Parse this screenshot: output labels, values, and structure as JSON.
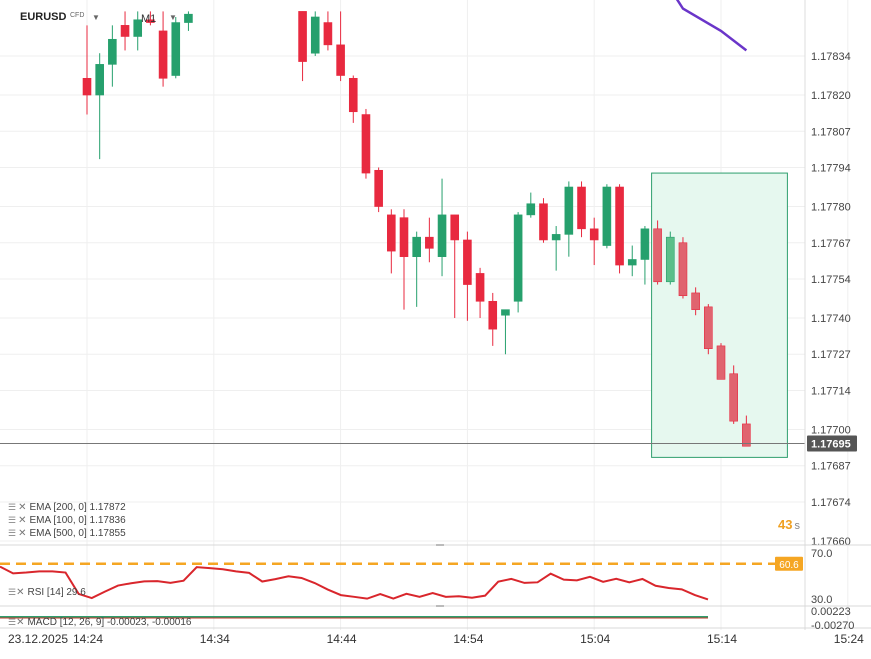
{
  "header": {
    "symbol": "EURUSD",
    "symbol_type": "CFD",
    "timeframe": "M1",
    "countdown_value": "43",
    "countdown_unit": "s"
  },
  "indicators": {
    "ema200": "EMA [200, 0] 1.17872",
    "ema100": "EMA [100, 0] 1.17836",
    "ema500": "EMA [500, 0] 1.17855",
    "rsi": "RSI [14] 29.6",
    "macd": "MACD [12, 26, 9] -0.00023, -0.00016"
  },
  "colors": {
    "up": "#26a06d",
    "down": "#e8293f",
    "down_light": "#e0646f",
    "up_light": "#5cbf8a",
    "ema_line": "#6a35c9",
    "box_fill": "#e6f8ef",
    "box_stroke": "#2e9e6d",
    "rsi_line": "#d9262c",
    "rsi_level": "#f5a623",
    "macd_line": "#2e9e6d",
    "price_tag": "#555555"
  },
  "chart_data": {
    "type": "candlestick",
    "price_axis_labels": [
      "1.17834",
      "1.17820",
      "1.17807",
      "1.17794",
      "1.17780",
      "1.17767",
      "1.17754",
      "1.17740",
      "1.17727",
      "1.17714",
      "1.17700",
      "1.17687",
      "1.17674",
      "1.17660"
    ],
    "current_price": "1.17695",
    "time_axis": {
      "date": "23.12.2025",
      "labels": [
        "14:24",
        "14:34",
        "14:44",
        "14:54",
        "15:04",
        "15:14",
        "15:24"
      ]
    },
    "candles": [
      {
        "time": "14:24",
        "o": 1.17826,
        "h": 1.17845,
        "l": 1.17813,
        "c": 1.1782
      },
      {
        "time": "14:25",
        "o": 1.1782,
        "h": 1.17835,
        "l": 1.17797,
        "c": 1.17831
      },
      {
        "time": "14:26",
        "o": 1.17831,
        "h": 1.17845,
        "l": 1.17823,
        "c": 1.1784
      },
      {
        "time": "14:27",
        "o": 1.17845,
        "h": 1.1785,
        "l": 1.17836,
        "c": 1.17841
      },
      {
        "time": "14:28",
        "o": 1.17841,
        "h": 1.1785,
        "l": 1.17836,
        "c": 1.17847
      },
      {
        "time": "14:29",
        "o": 1.17847,
        "h": 1.1785,
        "l": 1.17845,
        "c": 1.17846
      },
      {
        "time": "14:30",
        "o": 1.17843,
        "h": 1.1785,
        "l": 1.17823,
        "c": 1.17826
      },
      {
        "time": "14:31",
        "o": 1.17827,
        "h": 1.17848,
        "l": 1.17826,
        "c": 1.17846
      },
      {
        "time": "14:32",
        "o": 1.17846,
        "h": 1.1785,
        "l": 1.17843,
        "c": 1.17849
      },
      {
        "time": "14:41",
        "o": 1.1785,
        "h": 1.1785,
        "l": 1.17825,
        "c": 1.17832
      },
      {
        "time": "14:42",
        "o": 1.17835,
        "h": 1.1785,
        "l": 1.17834,
        "c": 1.17848
      },
      {
        "time": "14:43",
        "o": 1.17846,
        "h": 1.1785,
        "l": 1.17836,
        "c": 1.17838
      },
      {
        "time": "14:44",
        "o": 1.17838,
        "h": 1.1785,
        "l": 1.17825,
        "c": 1.17827
      },
      {
        "time": "14:45",
        "o": 1.17826,
        "h": 1.17827,
        "l": 1.1781,
        "c": 1.17814
      },
      {
        "time": "14:46",
        "o": 1.17813,
        "h": 1.17815,
        "l": 1.1779,
        "c": 1.17792
      },
      {
        "time": "14:47",
        "o": 1.17793,
        "h": 1.17794,
        "l": 1.17778,
        "c": 1.1778
      },
      {
        "time": "14:48",
        "o": 1.17777,
        "h": 1.17779,
        "l": 1.17756,
        "c": 1.17764
      },
      {
        "time": "14:49",
        "o": 1.17776,
        "h": 1.17779,
        "l": 1.17743,
        "c": 1.17762
      },
      {
        "time": "14:50",
        "o": 1.17762,
        "h": 1.17771,
        "l": 1.17744,
        "c": 1.17769
      },
      {
        "time": "14:51",
        "o": 1.17769,
        "h": 1.17776,
        "l": 1.1776,
        "c": 1.17765
      },
      {
        "time": "14:52",
        "o": 1.17762,
        "h": 1.1779,
        "l": 1.17755,
        "c": 1.17777
      },
      {
        "time": "14:53",
        "o": 1.17777,
        "h": 1.17777,
        "l": 1.1774,
        "c": 1.17768
      },
      {
        "time": "14:54",
        "o": 1.17768,
        "h": 1.17771,
        "l": 1.17739,
        "c": 1.17752
      },
      {
        "time": "14:55",
        "o": 1.17756,
        "h": 1.17758,
        "l": 1.1774,
        "c": 1.17746
      },
      {
        "time": "14:56",
        "o": 1.17746,
        "h": 1.17749,
        "l": 1.1773,
        "c": 1.17736
      },
      {
        "time": "14:57",
        "o": 1.17741,
        "h": 1.17743,
        "l": 1.17727,
        "c": 1.17743
      },
      {
        "time": "14:58",
        "o": 1.17746,
        "h": 1.17778,
        "l": 1.17742,
        "c": 1.17777
      },
      {
        "time": "14:59",
        "o": 1.17777,
        "h": 1.17785,
        "l": 1.17776,
        "c": 1.17781
      },
      {
        "time": "15:00",
        "o": 1.17781,
        "h": 1.17783,
        "l": 1.17767,
        "c": 1.17768
      },
      {
        "time": "15:01",
        "o": 1.17768,
        "h": 1.17773,
        "l": 1.17757,
        "c": 1.1777
      },
      {
        "time": "15:02",
        "o": 1.1777,
        "h": 1.17789,
        "l": 1.17762,
        "c": 1.17787
      },
      {
        "time": "15:03",
        "o": 1.17787,
        "h": 1.17789,
        "l": 1.17769,
        "c": 1.17772
      },
      {
        "time": "15:04",
        "o": 1.17772,
        "h": 1.17776,
        "l": 1.17759,
        "c": 1.17768
      },
      {
        "time": "15:05",
        "o": 1.17766,
        "h": 1.17788,
        "l": 1.17765,
        "c": 1.17787
      },
      {
        "time": "15:06",
        "o": 1.17787,
        "h": 1.17788,
        "l": 1.17756,
        "c": 1.17759
      },
      {
        "time": "15:07",
        "o": 1.17759,
        "h": 1.17766,
        "l": 1.17755,
        "c": 1.17761
      },
      {
        "time": "15:08",
        "o": 1.17761,
        "h": 1.17773,
        "l": 1.17752,
        "c": 1.17772
      },
      {
        "time": "15:09",
        "o": 1.17772,
        "h": 1.17775,
        "l": 1.17752,
        "c": 1.17753
      },
      {
        "time": "15:10",
        "o": 1.17753,
        "h": 1.17771,
        "l": 1.17752,
        "c": 1.17769
      },
      {
        "time": "15:11",
        "o": 1.17767,
        "h": 1.17769,
        "l": 1.17747,
        "c": 1.17748
      },
      {
        "time": "15:12",
        "o": 1.17749,
        "h": 1.17751,
        "l": 1.17741,
        "c": 1.17743
      },
      {
        "time": "15:13",
        "o": 1.17744,
        "h": 1.17745,
        "l": 1.17727,
        "c": 1.17729
      },
      {
        "time": "15:14",
        "o": 1.1773,
        "h": 1.17731,
        "l": 1.17718,
        "c": 1.17718
      },
      {
        "time": "15:15",
        "o": 1.1772,
        "h": 1.17723,
        "l": 1.17702,
        "c": 1.17703
      },
      {
        "time": "15:16",
        "o": 1.17702,
        "h": 1.17705,
        "l": 1.17694,
        "c": 1.17694
      }
    ],
    "highlight_box": {
      "t_start": "15:09",
      "t_end": "15:19",
      "price_high": 1.17792,
      "price_low": 1.1769
    },
    "ema_visible_segment": [
      {
        "t": "15:11",
        "v": 1.17851
      },
      {
        "t": "15:14",
        "v": 1.17843
      },
      {
        "t": "15:16",
        "v": 1.17836
      }
    ],
    "rsi": {
      "levels": [
        "70.0",
        "30.0"
      ],
      "level_highlight": "60.6",
      "values": [
        58.1,
        52.3,
        53.0,
        54.0,
        54.0,
        53.0,
        34.4,
        30.8,
        36.4,
        41.7,
        43.7,
        45.3,
        45.5,
        44.0,
        45.9,
        57.7,
        56.8,
        55.9,
        54.0,
        52.7,
        45.2,
        47.3,
        49.8,
        48.3,
        43.9,
        38.2,
        33.4,
        31.9,
        30.3,
        34.3,
        30.4,
        34.5,
        31.9,
        35.2,
        31.9,
        32.4,
        31.1,
        32.9,
        45.1,
        47.5,
        44.0,
        44.5,
        52.0,
        46.8,
        46.2,
        49.3,
        44.9,
        47.6,
        44.5,
        47.4,
        41.5,
        39.6,
        38.4,
        33.4,
        29.6
      ]
    },
    "macd": {
      "axis_labels": [
        "0.00223",
        "-0.00270"
      ],
      "value": -0.00023,
      "signal": -0.00016
    }
  }
}
